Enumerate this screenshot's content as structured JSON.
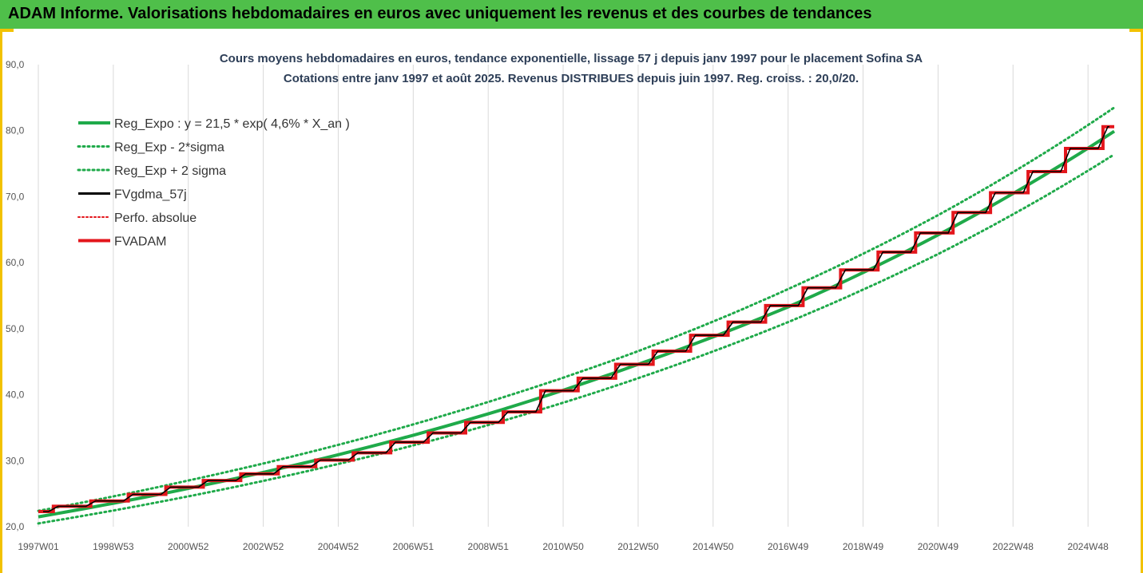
{
  "banner": {
    "title": "ADAM Informe. Valorisations hebdomadaires en euros avec uniquement les revenus et des courbes de tendances"
  },
  "colors": {
    "banner_bg": "#4fbf4a",
    "frame_border": "#f2c200",
    "green": "#1faa4a",
    "red": "#e3161c",
    "black": "#000000",
    "grid": "#d9d9d9"
  },
  "chart_data": {
    "type": "line",
    "title_lines": [
      "Cours moyens hebdomadaires en euros, tendance exponentielle, lissage 57 j depuis janv 1997  pour le placement Sofina SA",
      "Cotations entre janv 1997 et août 2025.  Revenus DISTRIBUES depuis juin 1997.  Reg. croiss. : 20,0/20."
    ],
    "xlim": [
      1997.0,
      2025.7
    ],
    "ylim": [
      20,
      90
    ],
    "y_ticks": [
      20,
      30,
      40,
      50,
      60,
      70,
      80,
      90
    ],
    "y_tick_labels": [
      "20,0",
      "30,0",
      "40,0",
      "50,0",
      "60,0",
      "70,0",
      "80,0",
      "90,0"
    ],
    "x_ticks": [
      {
        "x": 1997.0,
        "label": "1997W01"
      },
      {
        "x": 1999.0,
        "label": "1998W53"
      },
      {
        "x": 2001.0,
        "label": "2000W52"
      },
      {
        "x": 2003.0,
        "label": "2002W52"
      },
      {
        "x": 2005.0,
        "label": "2004W52"
      },
      {
        "x": 2007.0,
        "label": "2006W51"
      },
      {
        "x": 2009.0,
        "label": "2008W51"
      },
      {
        "x": 2011.0,
        "label": "2010W50"
      },
      {
        "x": 2013.0,
        "label": "2012W50"
      },
      {
        "x": 2015.0,
        "label": "2014W50"
      },
      {
        "x": 2017.0,
        "label": "2016W49"
      },
      {
        "x": 2019.0,
        "label": "2018W49"
      },
      {
        "x": 2021.0,
        "label": "2020W49"
      },
      {
        "x": 2023.0,
        "label": "2022W48"
      },
      {
        "x": 2025.0,
        "label": "2024W48"
      }
    ],
    "grid": "vertical",
    "legend_position": "top-left",
    "series": [
      {
        "name": "Reg_Expo : y = 21,5 * exp( 4,6% *  X_an )",
        "style": "green-solid",
        "x": [
          1997.0,
          2001.0,
          2005.0,
          2009.0,
          2013.0,
          2017.0,
          2021.0,
          2025.7
        ],
        "y": [
          21.5,
          25.8,
          30.9,
          37.1,
          44.6,
          53.3,
          64.2,
          79.9
        ]
      },
      {
        "name": "Reg_Exp - 2*sigma",
        "style": "green-dotted",
        "x": [
          1997.0,
          2001.0,
          2005.0,
          2009.0,
          2013.0,
          2017.0,
          2021.0,
          2025.7
        ],
        "y": [
          20.5,
          24.6,
          29.5,
          35.4,
          42.5,
          51.0,
          61.3,
          76.4
        ]
      },
      {
        "name": "Reg_Exp + 2 sigma",
        "style": "green-dotted",
        "x": [
          1997.0,
          2001.0,
          2005.0,
          2009.0,
          2013.0,
          2017.0,
          2021.0,
          2025.7
        ],
        "y": [
          22.4,
          27.0,
          32.4,
          38.9,
          46.6,
          56.0,
          67.2,
          83.5
        ]
      },
      {
        "name": "FVgdma_57j",
        "style": "black-solid"
      },
      {
        "name": "Perfo. absolue",
        "style": "red-dotted"
      },
      {
        "name": "FVADAM",
        "style": "red-step",
        "steps_x": [
          1997.0,
          1997.4,
          1998.4,
          1999.4,
          2000.4,
          2001.4,
          2002.4,
          2003.4,
          2004.4,
          2005.4,
          2006.4,
          2007.4,
          2008.4,
          2009.4,
          2010.4,
          2011.4,
          2012.4,
          2013.4,
          2014.4,
          2015.4,
          2016.4,
          2017.4,
          2018.4,
          2019.4,
          2020.4,
          2021.4,
          2022.4,
          2023.4,
          2024.4,
          2025.4,
          2025.7
        ],
        "steps_y": [
          22.3,
          23.1,
          23.9,
          24.9,
          26.0,
          27.0,
          28.0,
          29.1,
          30.1,
          31.2,
          32.8,
          34.2,
          35.8,
          37.4,
          40.6,
          42.5,
          44.6,
          46.6,
          49.0,
          51.0,
          53.5,
          56.2,
          58.9,
          61.6,
          64.5,
          67.6,
          70.6,
          73.8,
          77.3,
          80.6
        ]
      }
    ]
  }
}
